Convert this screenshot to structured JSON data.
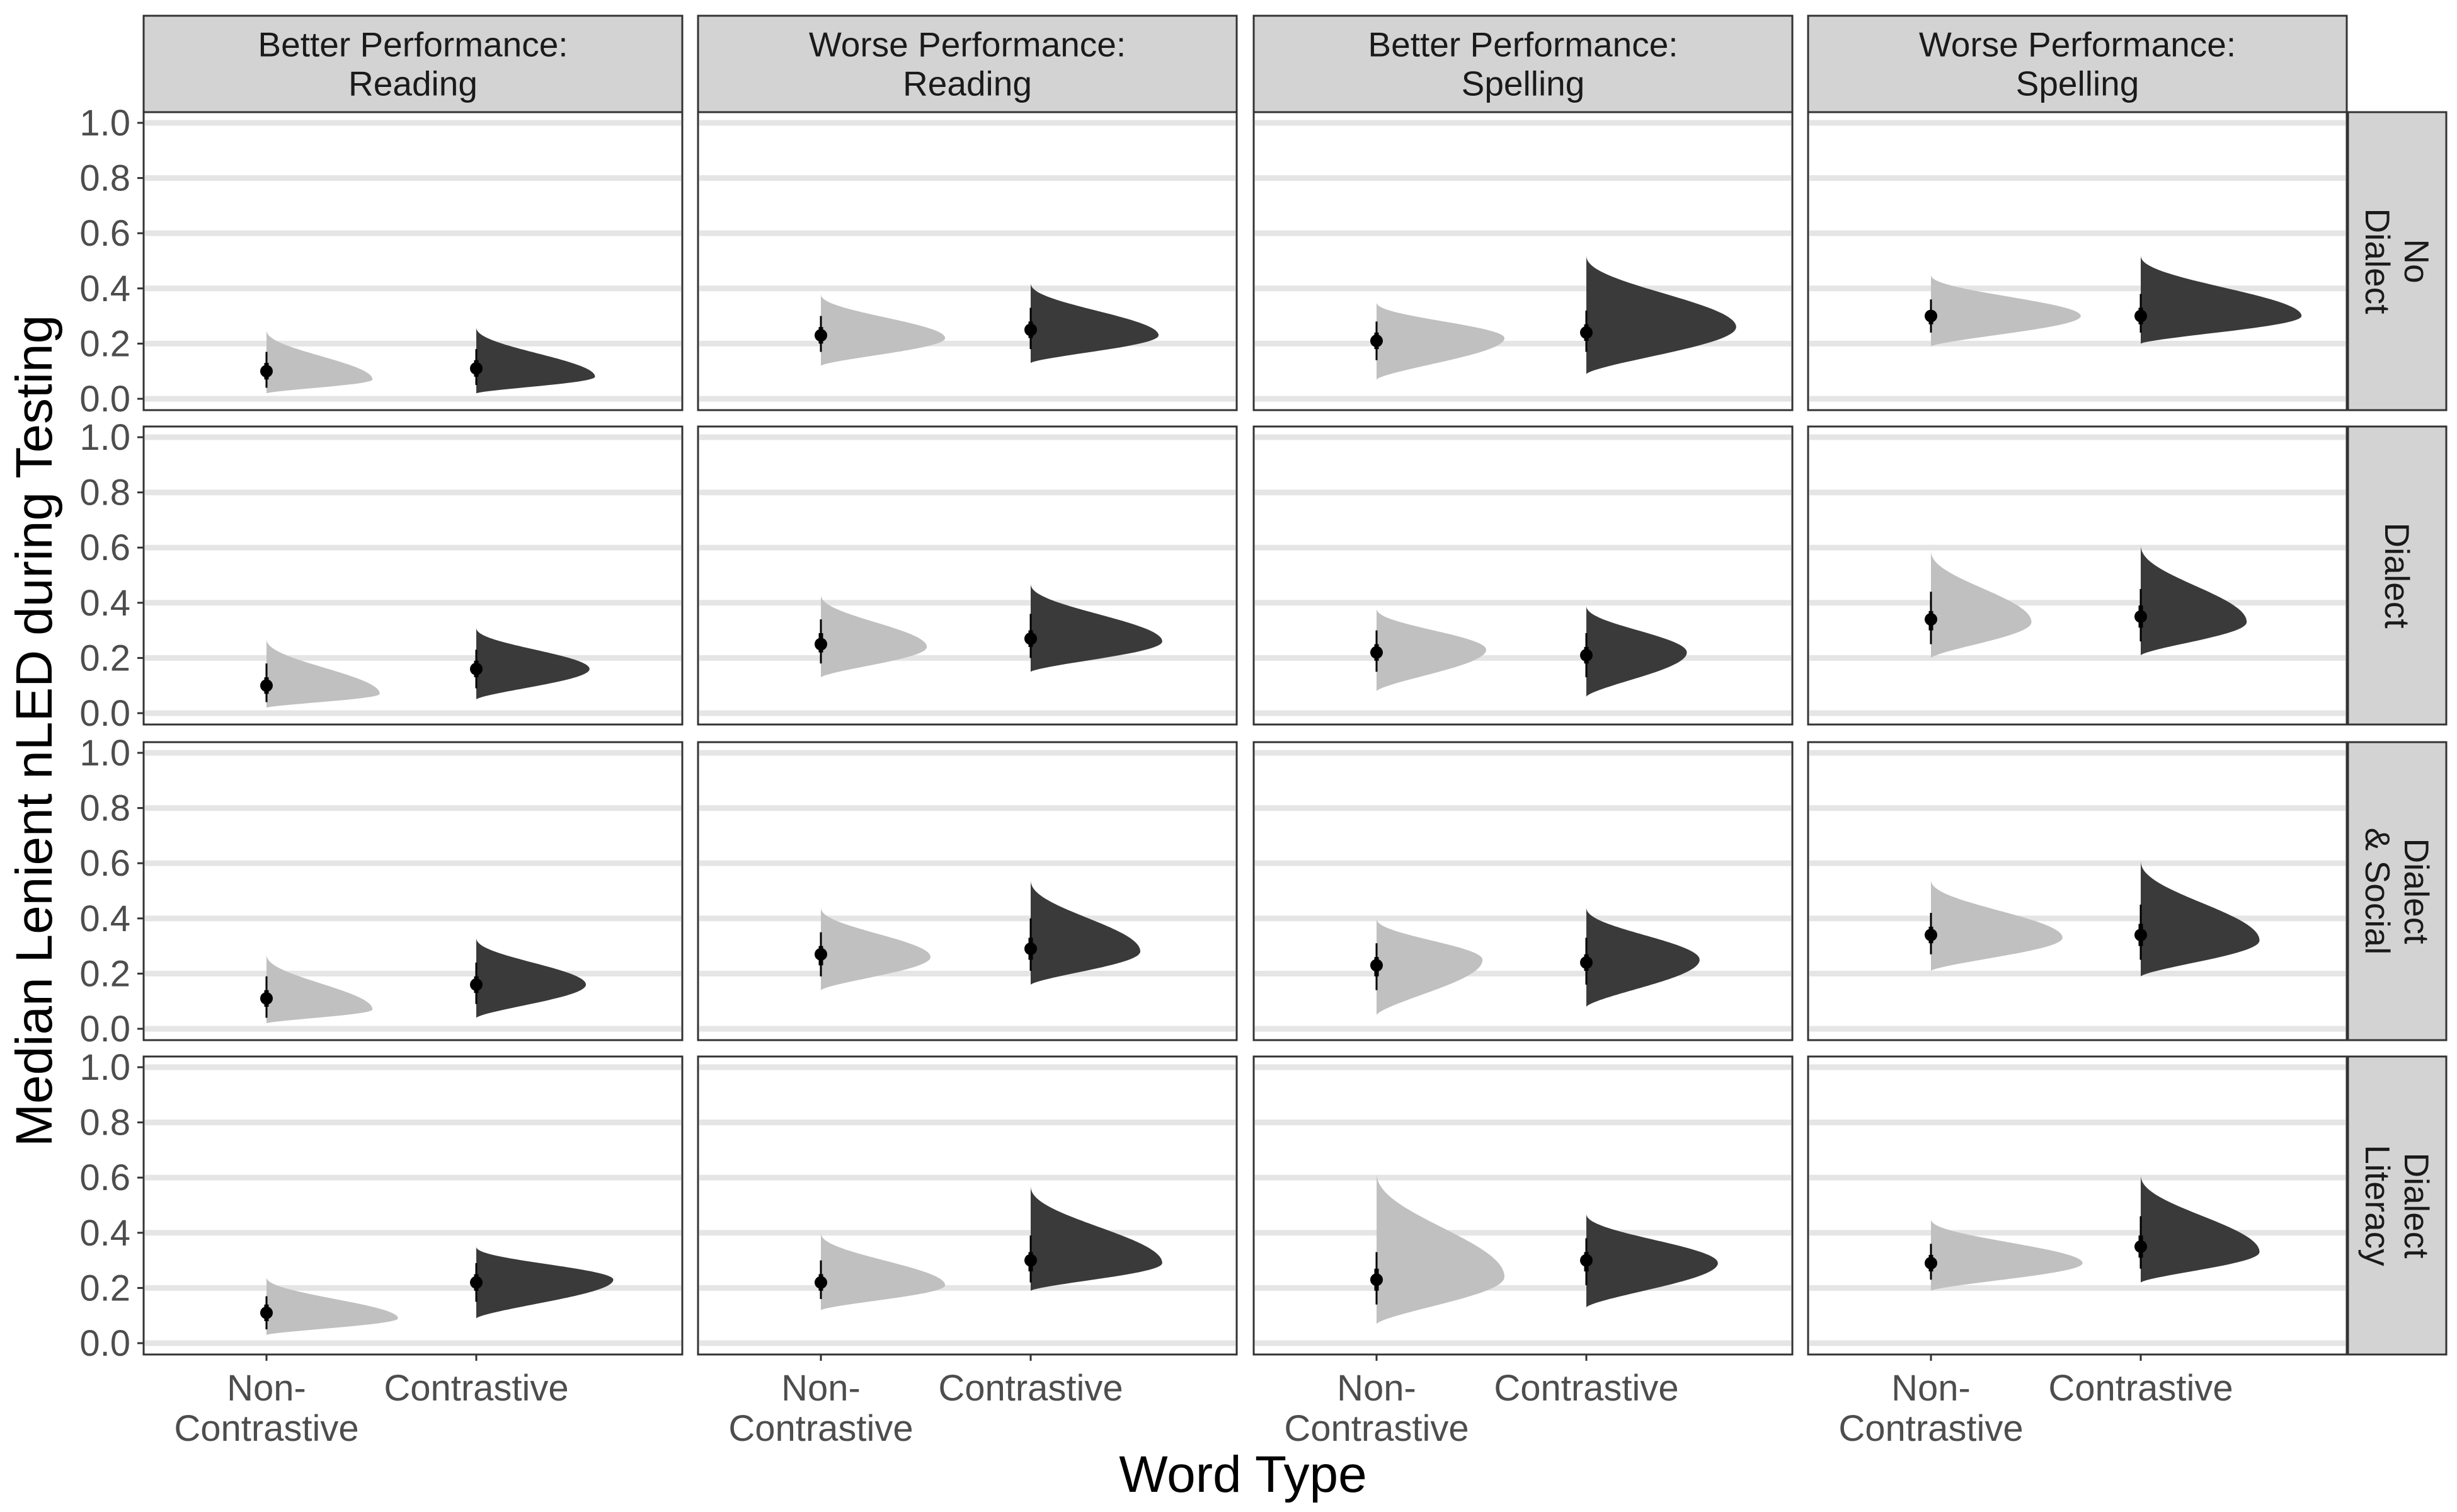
{
  "chart_data": {
    "type": "half-violin with point and interval (faceted)",
    "xlabel": "Word Type",
    "ylabel": "Median Lenient nLED during Testing",
    "ylim": [
      0,
      1
    ],
    "yticks": [
      "0.0",
      "0.2",
      "0.4",
      "0.6",
      "0.8",
      "1.0"
    ],
    "categories": [
      {
        "id": "noncontrastive",
        "label_lines": [
          "Non-",
          "Contrastive"
        ]
      },
      {
        "id": "contrastive",
        "label_lines": [
          "Contrastive"
        ]
      }
    ],
    "columns": [
      {
        "label_lines": [
          "Better Performance:",
          "Reading"
        ]
      },
      {
        "label_lines": [
          "Worse Performance:",
          "Reading"
        ]
      },
      {
        "label_lines": [
          "Better Performance:",
          "Spelling"
        ]
      },
      {
        "label_lines": [
          "Worse Performance:",
          "Spelling"
        ]
      }
    ],
    "rows": [
      {
        "label_lines": [
          "No",
          "Dialect"
        ]
      },
      {
        "label_lines": [
          "Dialect"
        ]
      },
      {
        "label_lines": [
          "Dialect",
          "& Social"
        ]
      },
      {
        "label_lines": [
          "Dialect",
          "Literacy"
        ]
      }
    ],
    "colors": {
      "noncontrastive": "#c0c0c0",
      "contrastive": "#3a3a3a",
      "strip": "#d3d3d3",
      "grid": "#e5e5e5",
      "point": "#000000"
    },
    "grid": "horizontal major lines",
    "cells": [
      [
        {
          "nc": {
            "median": 0.1,
            "lo": 0.02,
            "hi": 0.25,
            "mode": 0.07,
            "width": 0.58,
            "q50": [
              0.07,
              0.13
            ],
            "q95": [
              0.04,
              0.17
            ]
          },
          "c": {
            "median": 0.11,
            "lo": 0.02,
            "hi": 0.26,
            "mode": 0.08,
            "width": 0.65,
            "q50": [
              0.08,
              0.14
            ],
            "q95": [
              0.05,
              0.18
            ]
          }
        },
        {
          "nc": {
            "median": 0.23,
            "lo": 0.12,
            "hi": 0.38,
            "mode": 0.22,
            "width": 0.68,
            "q50": [
              0.2,
              0.26
            ],
            "q95": [
              0.17,
              0.3
            ]
          },
          "c": {
            "median": 0.25,
            "lo": 0.13,
            "hi": 0.42,
            "mode": 0.23,
            "width": 0.7,
            "q50": [
              0.22,
              0.28
            ],
            "q95": [
              0.18,
              0.33
            ]
          }
        },
        {
          "nc": {
            "median": 0.21,
            "lo": 0.07,
            "hi": 0.35,
            "mode": 0.22,
            "width": 0.7,
            "q50": [
              0.18,
              0.24
            ],
            "q95": [
              0.14,
              0.28
            ]
          },
          "c": {
            "median": 0.24,
            "lo": 0.09,
            "hi": 0.52,
            "mode": 0.26,
            "width": 0.82,
            "q50": [
              0.21,
              0.27
            ],
            "q95": [
              0.17,
              0.32
            ]
          }
        },
        {
          "nc": {
            "median": 0.3,
            "lo": 0.19,
            "hi": 0.45,
            "mode": 0.3,
            "width": 0.82,
            "q50": [
              0.27,
              0.32
            ],
            "q95": [
              0.24,
              0.36
            ]
          },
          "c": {
            "median": 0.3,
            "lo": 0.2,
            "hi": 0.52,
            "mode": 0.3,
            "width": 0.88,
            "q50": [
              0.27,
              0.33
            ],
            "q95": [
              0.24,
              0.38
            ]
          }
        }
      ],
      [
        {
          "nc": {
            "median": 0.1,
            "lo": 0.02,
            "hi": 0.27,
            "mode": 0.07,
            "width": 0.62,
            "q50": [
              0.07,
              0.13
            ],
            "q95": [
              0.04,
              0.18
            ]
          },
          "c": {
            "median": 0.16,
            "lo": 0.05,
            "hi": 0.31,
            "mode": 0.16,
            "width": 0.62,
            "q50": [
              0.13,
              0.19
            ],
            "q95": [
              0.09,
              0.23
            ]
          }
        },
        {
          "nc": {
            "median": 0.25,
            "lo": 0.13,
            "hi": 0.43,
            "mode": 0.24,
            "width": 0.58,
            "q50": [
              0.22,
              0.29
            ],
            "q95": [
              0.18,
              0.34
            ]
          },
          "c": {
            "median": 0.27,
            "lo": 0.15,
            "hi": 0.47,
            "mode": 0.26,
            "width": 0.72,
            "q50": [
              0.24,
              0.3
            ],
            "q95": [
              0.2,
              0.36
            ]
          }
        },
        {
          "nc": {
            "median": 0.22,
            "lo": 0.08,
            "hi": 0.38,
            "mode": 0.23,
            "width": 0.6,
            "q50": [
              0.19,
              0.25
            ],
            "q95": [
              0.15,
              0.3
            ]
          },
          "c": {
            "median": 0.21,
            "lo": 0.06,
            "hi": 0.39,
            "mode": 0.22,
            "width": 0.55,
            "q50": [
              0.18,
              0.24
            ],
            "q95": [
              0.13,
              0.29
            ]
          }
        },
        {
          "nc": {
            "median": 0.34,
            "lo": 0.2,
            "hi": 0.59,
            "mode": 0.33,
            "width": 0.55,
            "q50": [
              0.3,
              0.37
            ],
            "q95": [
              0.25,
              0.44
            ]
          },
          "c": {
            "median": 0.35,
            "lo": 0.21,
            "hi": 0.61,
            "mode": 0.33,
            "width": 0.58,
            "q50": [
              0.31,
              0.39
            ],
            "q95": [
              0.26,
              0.45
            ]
          }
        }
      ],
      [
        {
          "nc": {
            "median": 0.11,
            "lo": 0.02,
            "hi": 0.27,
            "mode": 0.07,
            "width": 0.58,
            "q50": [
              0.08,
              0.14
            ],
            "q95": [
              0.04,
              0.19
            ]
          },
          "c": {
            "median": 0.16,
            "lo": 0.04,
            "hi": 0.33,
            "mode": 0.16,
            "width": 0.6,
            "q50": [
              0.13,
              0.19
            ],
            "q95": [
              0.09,
              0.24
            ]
          }
        },
        {
          "nc": {
            "median": 0.27,
            "lo": 0.14,
            "hi": 0.44,
            "mode": 0.26,
            "width": 0.6,
            "q50": [
              0.23,
              0.3
            ],
            "q95": [
              0.19,
              0.35
            ]
          },
          "c": {
            "median": 0.29,
            "lo": 0.16,
            "hi": 0.54,
            "mode": 0.28,
            "width": 0.6,
            "q50": [
              0.25,
              0.33
            ],
            "q95": [
              0.21,
              0.4
            ]
          }
        },
        {
          "nc": {
            "median": 0.23,
            "lo": 0.05,
            "hi": 0.4,
            "mode": 0.25,
            "width": 0.58,
            "q50": [
              0.19,
              0.26
            ],
            "q95": [
              0.14,
              0.31
            ]
          },
          "c": {
            "median": 0.24,
            "lo": 0.08,
            "hi": 0.44,
            "mode": 0.25,
            "width": 0.62,
            "q50": [
              0.21,
              0.27
            ],
            "q95": [
              0.16,
              0.33
            ]
          }
        },
        {
          "nc": {
            "median": 0.34,
            "lo": 0.21,
            "hi": 0.54,
            "mode": 0.33,
            "width": 0.72,
            "q50": [
              0.31,
              0.37
            ],
            "q95": [
              0.27,
              0.42
            ]
          },
          "c": {
            "median": 0.34,
            "lo": 0.19,
            "hi": 0.61,
            "mode": 0.32,
            "width": 0.65,
            "q50": [
              0.3,
              0.38
            ],
            "q95": [
              0.25,
              0.45
            ]
          }
        }
      ],
      [
        {
          "nc": {
            "median": 0.11,
            "lo": 0.03,
            "hi": 0.24,
            "mode": 0.09,
            "width": 0.72,
            "q50": [
              0.08,
              0.14
            ],
            "q95": [
              0.05,
              0.17
            ]
          },
          "c": {
            "median": 0.22,
            "lo": 0.09,
            "hi": 0.35,
            "mode": 0.23,
            "width": 0.75,
            "q50": [
              0.19,
              0.25
            ],
            "q95": [
              0.15,
              0.29
            ]
          }
        },
        {
          "nc": {
            "median": 0.22,
            "lo": 0.12,
            "hi": 0.4,
            "mode": 0.21,
            "width": 0.68,
            "q50": [
              0.19,
              0.25
            ],
            "q95": [
              0.16,
              0.3
            ]
          },
          "c": {
            "median": 0.3,
            "lo": 0.19,
            "hi": 0.57,
            "mode": 0.29,
            "width": 0.72,
            "q50": [
              0.26,
              0.33
            ],
            "q95": [
              0.22,
              0.39
            ]
          }
        },
        {
          "nc": {
            "median": 0.23,
            "lo": 0.07,
            "hi": 0.62,
            "mode": 0.24,
            "width": 0.7,
            "q50": [
              0.19,
              0.27
            ],
            "q95": [
              0.14,
              0.33
            ]
          },
          "c": {
            "median": 0.3,
            "lo": 0.13,
            "hi": 0.47,
            "mode": 0.29,
            "width": 0.72,
            "q50": [
              0.26,
              0.33
            ],
            "q95": [
              0.21,
              0.38
            ]
          }
        },
        {
          "nc": {
            "median": 0.29,
            "lo": 0.19,
            "hi": 0.45,
            "mode": 0.29,
            "width": 0.83,
            "q50": [
              0.26,
              0.32
            ],
            "q95": [
              0.23,
              0.36
            ]
          },
          "c": {
            "median": 0.35,
            "lo": 0.22,
            "hi": 0.61,
            "mode": 0.33,
            "width": 0.65,
            "q50": [
              0.31,
              0.39
            ],
            "q95": [
              0.27,
              0.46
            ]
          }
        }
      ]
    ]
  }
}
